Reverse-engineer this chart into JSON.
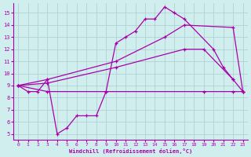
{
  "xlabel": "Windchill (Refroidissement éolien,°C)",
  "background_color": "#d0eeee",
  "line_color": "#aa00aa",
  "grid_color": "#aacccc",
  "xlim": [
    -0.5,
    23.5
  ],
  "ylim": [
    4.5,
    15.8
  ],
  "yticks": [
    5,
    6,
    7,
    8,
    9,
    10,
    11,
    12,
    13,
    14,
    15
  ],
  "xticks": [
    0,
    1,
    2,
    3,
    4,
    5,
    6,
    7,
    8,
    9,
    10,
    11,
    12,
    13,
    14,
    15,
    16,
    17,
    18,
    19,
    20,
    21,
    22,
    23
  ],
  "line1": {
    "x": [
      0,
      1,
      2,
      3,
      4,
      5,
      6,
      7,
      8,
      9,
      10,
      11,
      12,
      13,
      14,
      15,
      16,
      17,
      20,
      21,
      22
    ],
    "y": [
      9.0,
      8.5,
      8.5,
      9.5,
      5.0,
      5.5,
      6.5,
      6.5,
      6.5,
      8.5,
      12.5,
      13.0,
      13.5,
      14.5,
      14.5,
      15.5,
      15.0,
      14.5,
      12.0,
      10.5,
      9.5
    ]
  },
  "line2": {
    "x": [
      0,
      3,
      10,
      15,
      17,
      22,
      23
    ],
    "y": [
      9.0,
      9.5,
      11.0,
      13.0,
      14.0,
      13.8,
      8.5
    ]
  },
  "line3": {
    "x": [
      0,
      3,
      10,
      17,
      19,
      22,
      23
    ],
    "y": [
      9.0,
      9.2,
      10.5,
      12.0,
      12.0,
      9.5,
      8.5
    ]
  },
  "line4": {
    "x": [
      0,
      3,
      9,
      19,
      22,
      23
    ],
    "y": [
      9.0,
      8.5,
      8.5,
      8.5,
      8.5,
      8.5
    ]
  }
}
